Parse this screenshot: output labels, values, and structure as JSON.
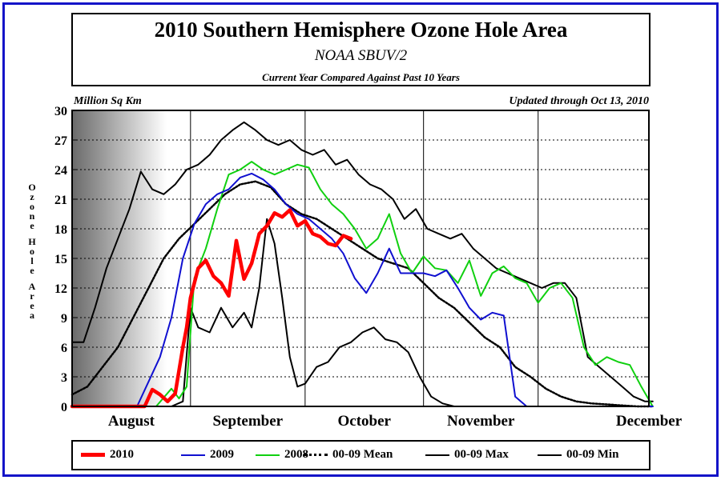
{
  "header": {
    "title": "2010 Southern Hemisphere Ozone Hole Area",
    "subtitle": "NOAA SBUV/2",
    "subtitle2": "Current Year Compared Against Past 10 Years"
  },
  "units_label": "Million Sq Km",
  "updated_label": "Updated through Oct 13, 2010",
  "colors": {
    "frame": "#1414c8",
    "y2010": "#ff0000",
    "y2009": "#1010d0",
    "y2008": "#10d010",
    "black": "#000000"
  },
  "chart_data": {
    "type": "line",
    "title": "2010 Southern Hemisphere Ozone Hole Area",
    "ylabel": "Ozone Hole Area",
    "ylim": [
      0,
      30
    ],
    "yticks": [
      0,
      3,
      6,
      9,
      12,
      15,
      18,
      21,
      24,
      27,
      30
    ],
    "xlim": [
      "Aug 1",
      "Dec 31"
    ],
    "month_labels": [
      "August",
      "September",
      "October",
      "November",
      "December"
    ],
    "grid": "vertical dashed at month starts",
    "series": [
      {
        "name": "2010",
        "color": "#ff0000",
        "x": [
          "Aug 1",
          "Aug 20",
          "Aug 22",
          "Aug 24",
          "Aug 26",
          "Aug 28",
          "Aug 30",
          "Aug 31",
          "Sep 1",
          "Sep 3",
          "Sep 5",
          "Sep 7",
          "Sep 9",
          "Sep 11",
          "Sep 13",
          "Sep 15",
          "Sep 17",
          "Sep 18",
          "Sep 19",
          "Sep 21",
          "Sep 23",
          "Sep 25",
          "Sep 27",
          "Sep 29",
          "Oct 1",
          "Oct 3",
          "Oct 5",
          "Oct 7",
          "Oct 9",
          "Oct 11",
          "Oct 13"
        ],
        "values": [
          0,
          0,
          1.7,
          1.2,
          0.5,
          1.3,
          6,
          8,
          11,
          14,
          14.8,
          13.2,
          12.5,
          11.2,
          16.8,
          12.9,
          14.5,
          16,
          17.5,
          18.3,
          19.6,
          19.2,
          19.9,
          18.3,
          18.8,
          17.5,
          17.2,
          16.5,
          16.3,
          17.3,
          17.0
        ]
      },
      {
        "name": "2009",
        "color": "#1010d0",
        "x": [
          "Aug 1",
          "Aug 18",
          "Aug 21",
          "Aug 24",
          "Aug 27",
          "Aug 30",
          "Sep 2",
          "Sep 5",
          "Sep 8",
          "Sep 11",
          "Sep 14",
          "Sep 17",
          "Sep 20",
          "Sep 23",
          "Sep 26",
          "Sep 29",
          "Oct 2",
          "Oct 5",
          "Oct 8",
          "Oct 11",
          "Oct 14",
          "Oct 17",
          "Oct 20",
          "Oct 23",
          "Oct 26",
          "Oct 29",
          "Nov 1",
          "Nov 4",
          "Nov 7",
          "Nov 10",
          "Nov 13",
          "Nov 16",
          "Nov 19",
          "Nov 22",
          "Nov 25",
          "Nov 28",
          "Dec 31"
        ],
        "values": [
          0,
          0,
          2.5,
          5,
          9,
          15,
          18.5,
          20.5,
          21.5,
          22,
          23.2,
          23.6,
          23,
          22,
          20.5,
          19.5,
          19,
          18,
          17,
          15.5,
          13,
          11.5,
          13.5,
          16,
          13.5,
          13.5,
          13.5,
          13.2,
          13.8,
          12,
          10,
          8.8,
          9.5,
          9.2,
          1,
          0,
          0
        ]
      },
      {
        "name": "2008",
        "color": "#10d010",
        "x": [
          "Aug 1",
          "Aug 23",
          "Aug 27",
          "Aug 29",
          "Aug 31",
          "Sep 2",
          "Sep 5",
          "Sep 8",
          "Sep 11",
          "Sep 14",
          "Sep 17",
          "Sep 20",
          "Sep 23",
          "Sep 26",
          "Sep 29",
          "Oct 2",
          "Oct 5",
          "Oct 8",
          "Oct 11",
          "Oct 14",
          "Oct 17",
          "Oct 20",
          "Oct 23",
          "Oct 26",
          "Oct 29",
          "Nov 1",
          "Nov 4",
          "Nov 7",
          "Nov 10",
          "Nov 13",
          "Nov 16",
          "Nov 19",
          "Nov 22",
          "Nov 25",
          "Nov 28",
          "Dec 1",
          "Dec 4",
          "Dec 7",
          "Dec 10",
          "Dec 13",
          "Dec 16",
          "Dec 19",
          "Dec 22",
          "Dec 25",
          "Dec 28",
          "Dec 31"
        ],
        "values": [
          0,
          0,
          1.8,
          0.8,
          2,
          13,
          16,
          20,
          23.5,
          24,
          24.8,
          24,
          23.5,
          24,
          24.5,
          24.2,
          22,
          20.5,
          19.5,
          18,
          16,
          17,
          19.5,
          15.5,
          13.5,
          15.2,
          14,
          13.8,
          12.5,
          14.8,
          11.2,
          13.5,
          14.2,
          13,
          12.5,
          10.5,
          12,
          12.5,
          11,
          6,
          4.2,
          5,
          4.5,
          4.2,
          2,
          0
        ]
      },
      {
        "name": "00-09 Mean",
        "color": "#000000",
        "x": [
          "Aug 1",
          "Aug 5",
          "Aug 9",
          "Aug 13",
          "Aug 17",
          "Aug 21",
          "Aug 25",
          "Aug 29",
          "Sep 2",
          "Sep 6",
          "Sep 10",
          "Sep 14",
          "Sep 18",
          "Sep 22",
          "Sep 26",
          "Sep 30",
          "Oct 4",
          "Oct 8",
          "Oct 12",
          "Oct 16",
          "Oct 20",
          "Oct 24",
          "Oct 28",
          "Nov 1",
          "Nov 5",
          "Nov 9",
          "Nov 13",
          "Nov 17",
          "Nov 21",
          "Nov 25",
          "Nov 29",
          "Dec 3",
          "Dec 7",
          "Dec 11",
          "Dec 15",
          "Dec 19",
          "Dec 23",
          "Dec 27",
          "Dec 31"
        ],
        "values": [
          1.2,
          2,
          4,
          6,
          9,
          12,
          15,
          17,
          18.5,
          20,
          21.5,
          22.5,
          22.8,
          22.2,
          20.5,
          19.5,
          19,
          18,
          17,
          16,
          15,
          14.5,
          14,
          12.5,
          11,
          10,
          8.5,
          7,
          6,
          4,
          3,
          1.8,
          1,
          0.5,
          0.3,
          0.2,
          0.1,
          0,
          0
        ]
      },
      {
        "name": "00-09 Max",
        "color": "#000000",
        "x": [
          "Aug 1",
          "Aug 4",
          "Aug 7",
          "Aug 10",
          "Aug 13",
          "Aug 16",
          "Aug 19",
          "Aug 22",
          "Aug 25",
          "Aug 28",
          "Aug 31",
          "Sep 3",
          "Sep 6",
          "Sep 9",
          "Sep 12",
          "Sep 15",
          "Sep 18",
          "Sep 21",
          "Sep 24",
          "Sep 27",
          "Sep 30",
          "Oct 3",
          "Oct 6",
          "Oct 9",
          "Oct 12",
          "Oct 15",
          "Oct 18",
          "Oct 21",
          "Oct 24",
          "Oct 27",
          "Oct 30",
          "Nov 2",
          "Nov 5",
          "Nov 8",
          "Nov 11",
          "Nov 14",
          "Nov 17",
          "Nov 20",
          "Nov 23",
          "Nov 26",
          "Nov 29",
          "Dec 2",
          "Dec 5",
          "Dec 8",
          "Dec 11",
          "Dec 14",
          "Dec 17",
          "Dec 20",
          "Dec 23",
          "Dec 26",
          "Dec 29",
          "Dec 31"
        ],
        "values": [
          6.5,
          6.5,
          10,
          14,
          17,
          20,
          23.8,
          22,
          21.5,
          22.5,
          24,
          24.5,
          25.5,
          27,
          28,
          28.8,
          28,
          27,
          26.5,
          27,
          26,
          25.5,
          26,
          24.5,
          25,
          23.5,
          22.5,
          22,
          21,
          19,
          20,
          18,
          17.5,
          17,
          17.5,
          16,
          15,
          14,
          13.5,
          13,
          12.5,
          12,
          12.5,
          12.5,
          11,
          5,
          4,
          3,
          2,
          1,
          0.5,
          0.5
        ]
      },
      {
        "name": "00-09 Min",
        "color": "#000000",
        "x": [
          "Aug 1",
          "Aug 27",
          "Aug 30",
          "Sep 1",
          "Sep 3",
          "Sep 6",
          "Sep 9",
          "Sep 12",
          "Sep 15",
          "Sep 17",
          "Sep 19",
          "Sep 21",
          "Sep 23",
          "Sep 25",
          "Sep 27",
          "Sep 29",
          "Oct 1",
          "Oct 4",
          "Oct 7",
          "Oct 10",
          "Oct 13",
          "Oct 16",
          "Oct 19",
          "Oct 22",
          "Oct 25",
          "Oct 28",
          "Oct 31",
          "Nov 3",
          "Nov 6",
          "Nov 9",
          "Dec 31"
        ],
        "values": [
          0,
          0,
          0.5,
          10,
          8,
          7.5,
          10,
          8,
          9.5,
          8,
          12,
          19,
          16.5,
          11,
          5,
          2,
          2.3,
          4,
          4.5,
          6,
          6.5,
          7.5,
          8,
          6.8,
          6.5,
          5.5,
          3,
          1,
          0.3,
          0,
          0
        ]
      }
    ]
  },
  "legend": {
    "items": [
      "2010",
      "2009",
      "2008",
      "00-09 Mean",
      "00-09 Max",
      "00-09 Min"
    ]
  }
}
